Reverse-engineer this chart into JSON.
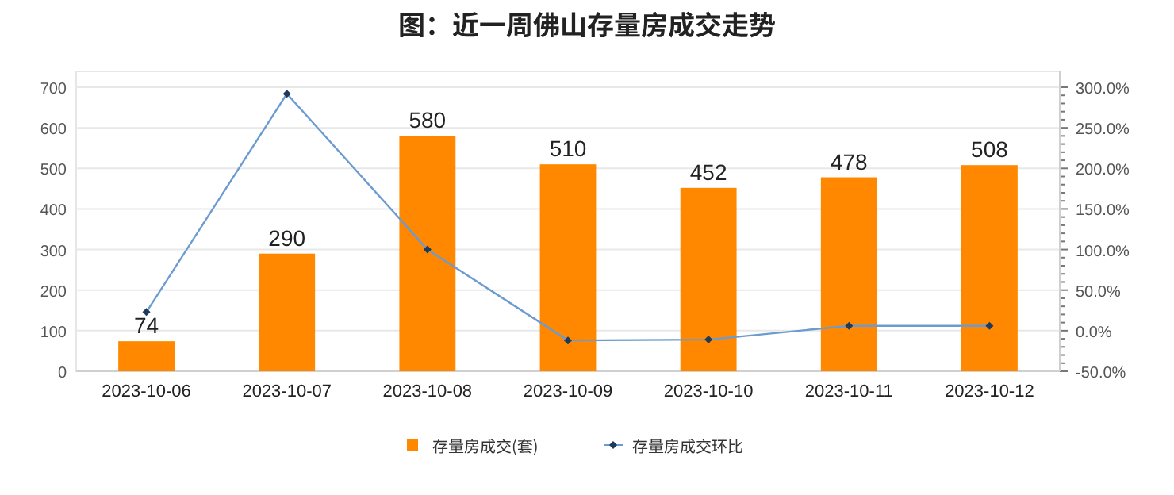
{
  "chart_data": {
    "type": "bar",
    "title": "图：近一周佛山存量房成交走势",
    "categories": [
      "2023-10-06",
      "2023-10-07",
      "2023-10-08",
      "2023-10-09",
      "2023-10-10",
      "2023-10-11",
      "2023-10-12"
    ],
    "series": [
      {
        "name": "存量房成交(套)",
        "color": "#ff8800",
        "values": [
          74,
          290,
          580,
          510,
          452,
          478,
          508
        ],
        "data_labels": true
      },
      {
        "name": "存量房成交环比",
        "type": "line",
        "axis": "y2",
        "color": "#6b9bd1",
        "marker": "diamond",
        "values": [
          23,
          292,
          100,
          -12,
          -11,
          6,
          6
        ]
      }
    ],
    "ylim": [
      0,
      700
    ],
    "yticks": [
      0,
      100,
      200,
      300,
      400,
      500,
      600,
      700
    ],
    "y2lim": [
      -50,
      300
    ],
    "y2ticks": [
      {
        "value": -50,
        "label": "-50.0%"
      },
      {
        "value": -40,
        "label": null
      },
      {
        "value": -30,
        "label": null
      },
      {
        "value": -20,
        "label": null
      },
      {
        "value": -10,
        "label": null
      },
      {
        "value": 0,
        "label": "0.0%"
      },
      {
        "value": 10,
        "label": null
      },
      {
        "value": 20,
        "label": null
      },
      {
        "value": 30,
        "label": null
      },
      {
        "value": 40,
        "label": null
      },
      {
        "value": 50,
        "label": "50.0%"
      },
      {
        "value": 60,
        "label": null
      },
      {
        "value": 70,
        "label": null
      },
      {
        "value": 80,
        "label": null
      },
      {
        "value": 90,
        "label": null
      },
      {
        "value": 100,
        "label": "100.0%"
      },
      {
        "value": 110,
        "label": null
      },
      {
        "value": 120,
        "label": null
      },
      {
        "value": 130,
        "label": null
      },
      {
        "value": 140,
        "label": null
      },
      {
        "value": 150,
        "label": "150.0%"
      },
      {
        "value": 160,
        "label": null
      },
      {
        "value": 170,
        "label": null
      },
      {
        "value": 180,
        "label": null
      },
      {
        "value": 190,
        "label": null
      },
      {
        "value": 200,
        "label": "200.0%"
      },
      {
        "value": 210,
        "label": null
      },
      {
        "value": 220,
        "label": null
      },
      {
        "value": 230,
        "label": null
      },
      {
        "value": 240,
        "label": null
      },
      {
        "value": 250,
        "label": "250.0%"
      },
      {
        "value": 260,
        "label": null
      },
      {
        "value": 270,
        "label": null
      },
      {
        "value": 280,
        "label": null
      },
      {
        "value": 290,
        "label": null
      },
      {
        "value": 300,
        "label": "300.0%"
      }
    ],
    "grid": "y",
    "legend": "bottom"
  }
}
